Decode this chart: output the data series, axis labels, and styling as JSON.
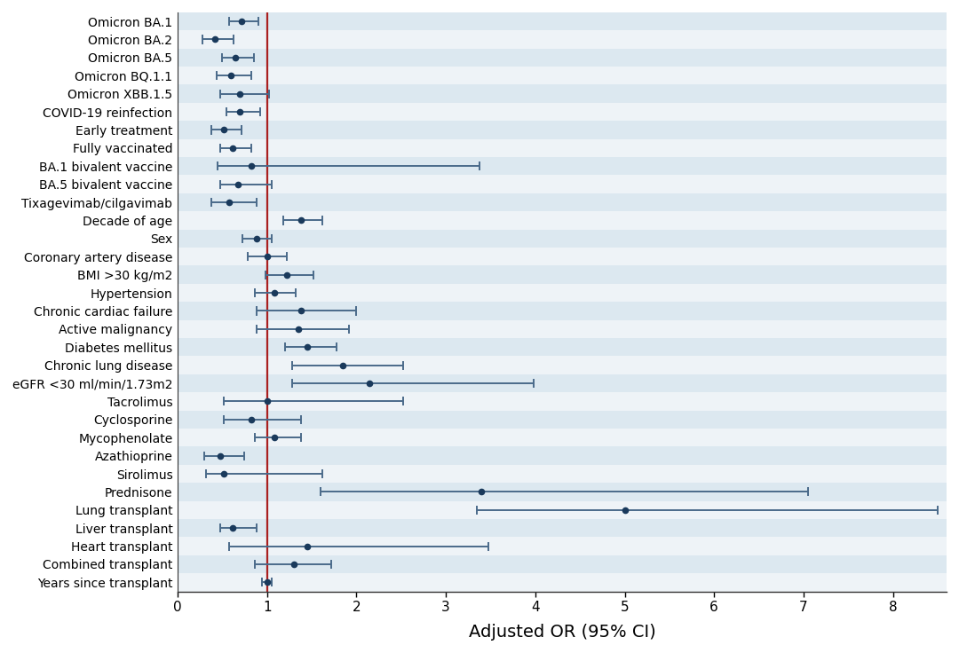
{
  "labels": [
    "Omicron BA.1",
    "Omicron BA.2",
    "Omicron BA.5",
    "Omicron BQ.1.1",
    "Omicron XBB.1.5",
    "COVID-19 reinfection",
    "Early treatment",
    "Fully vaccinated",
    "BA.1 bivalent vaccine",
    "BA.5 bivalent vaccine",
    "Tixagevimab/cilgavimab",
    "Decade of age",
    "Sex",
    "Coronary artery disease",
    "BMI >30 kg/m2",
    "Hypertension",
    "Chronic cardiac failure",
    "Active malignancy",
    "Diabetes mellitus",
    "Chronic lung disease",
    "eGFR <30 ml/min/1.73m2",
    "Tacrolimus",
    "Cyclosporine",
    "Mycophenolate",
    "Azathioprine",
    "Sirolimus",
    "Prednisone",
    "Lung transplant",
    "Liver transplant",
    "Heart transplant",
    "Combined transplant",
    "Years since transplant"
  ],
  "or": [
    0.72,
    0.42,
    0.65,
    0.6,
    0.7,
    0.7,
    0.52,
    0.62,
    0.82,
    0.68,
    0.58,
    1.38,
    0.88,
    1.0,
    1.22,
    1.08,
    1.38,
    1.35,
    1.45,
    1.85,
    2.15,
    1.0,
    0.82,
    1.08,
    0.48,
    0.52,
    3.4,
    5.0,
    0.62,
    1.45,
    1.3,
    1.0
  ],
  "ci_low": [
    0.58,
    0.28,
    0.5,
    0.44,
    0.48,
    0.55,
    0.38,
    0.48,
    0.45,
    0.48,
    0.38,
    1.18,
    0.73,
    0.78,
    0.98,
    0.86,
    0.88,
    0.88,
    1.2,
    1.28,
    1.28,
    0.52,
    0.52,
    0.86,
    0.3,
    0.32,
    1.6,
    3.35,
    0.48,
    0.58,
    0.86,
    0.94
  ],
  "ci_high": [
    0.9,
    0.63,
    0.85,
    0.82,
    1.02,
    0.92,
    0.72,
    0.82,
    3.38,
    1.05,
    0.88,
    1.62,
    1.05,
    1.22,
    1.52,
    1.32,
    2.0,
    1.92,
    1.78,
    2.52,
    3.98,
    2.52,
    1.38,
    1.38,
    0.75,
    1.62,
    7.05,
    8.5,
    0.88,
    3.48,
    1.72,
    1.05
  ],
  "ref_line": 1.0,
  "xlim": [
    0,
    8.6
  ],
  "xticks": [
    0,
    1,
    2,
    3,
    4,
    5,
    6,
    7,
    8
  ],
  "xlabel": "Adjusted OR (95% CI)",
  "dot_color": "#1a3a5c",
  "line_color": "#4a6a8a",
  "ref_color": "#aa2020",
  "row_bg_even": "#dce8f0",
  "row_bg_odd": "#eef3f7",
  "figsize": [
    10.8,
    7.36
  ],
  "dpi": 100,
  "label_fontsize": 10,
  "tick_fontsize": 11,
  "xlabel_fontsize": 14
}
